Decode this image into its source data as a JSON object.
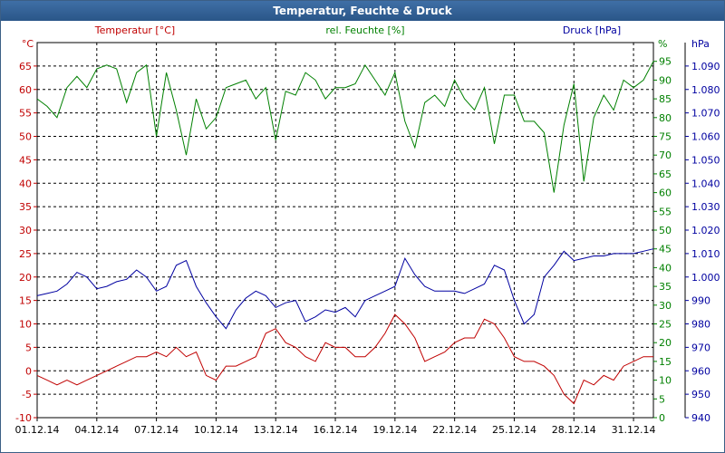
{
  "window": {
    "title": "Temperatur, Feuchte & Druck"
  },
  "chart_data": {
    "type": "line",
    "title": "Temperatur, Feuchte & Druck",
    "x_tick_labels": [
      "01.12.14",
      "04.12.14",
      "07.12.14",
      "10.12.14",
      "13.12.14",
      "16.12.14",
      "19.12.14",
      "22.12.14",
      "25.12.14",
      "28.12.14",
      "31.12.14"
    ],
    "xlim": [
      1,
      32
    ],
    "grid": true,
    "axes": {
      "temperature": {
        "label": "Temperatur [°C]",
        "unit": "°C",
        "side": "left",
        "color": "#c00000",
        "ylim": [
          -10,
          70
        ],
        "ticks": [
          "65",
          "60",
          "55",
          "50",
          "45",
          "40",
          "35",
          "30",
          "25",
          "20",
          "15",
          "10",
          "5",
          "0",
          "-5",
          "-10"
        ]
      },
      "humidity": {
        "label": "rel. Feuchte [%]",
        "unit": "%",
        "side": "right",
        "color": "#008000",
        "ylim": [
          0,
          100
        ],
        "ticks": [
          "95",
          "90",
          "85",
          "80",
          "75",
          "70",
          "65",
          "60",
          "55",
          "50",
          "45",
          "40",
          "35",
          "30",
          "25",
          "20",
          "15",
          "10",
          "5",
          "0"
        ]
      },
      "pressure": {
        "label": "Druck [hPa]",
        "unit": "hPa",
        "side": "right",
        "color": "#0000a0",
        "ylim": [
          940,
          1100
        ],
        "ticks": [
          "1.090",
          "1.080",
          "1.070",
          "1.060",
          "1.050",
          "1.040",
          "1.030",
          "1.020",
          "1.010",
          "1.000",
          "990",
          "980",
          "970",
          "960",
          "950",
          "940"
        ]
      }
    },
    "series": [
      {
        "name": "Temperatur [°C]",
        "axis": "temperature",
        "color": "#c00000",
        "x": [
          1,
          1.5,
          2,
          2.5,
          3,
          3.5,
          4,
          4.5,
          5,
          5.5,
          6,
          6.5,
          7,
          7.5,
          8,
          8.5,
          9,
          9.5,
          10,
          10.5,
          11,
          11.5,
          12,
          12.5,
          13,
          13.5,
          14,
          14.5,
          15,
          15.5,
          16,
          16.5,
          17,
          17.5,
          18,
          18.5,
          19,
          19.5,
          20,
          20.5,
          21,
          21.5,
          22,
          22.5,
          23,
          23.5,
          24,
          24.5,
          25,
          25.5,
          26,
          26.5,
          27,
          27.5,
          28,
          28.5,
          29,
          29.5,
          30,
          30.5,
          31,
          31.5,
          32
        ],
        "y": [
          -1,
          -2,
          -3,
          -2,
          -3,
          -2,
          -1,
          0,
          1,
          2,
          3,
          3,
          4,
          3,
          5,
          3,
          4,
          -1,
          -2,
          1,
          1,
          2,
          3,
          8,
          9,
          6,
          5,
          3,
          2,
          6,
          5,
          5,
          3,
          3,
          5,
          8,
          12,
          10,
          7,
          2,
          3,
          4,
          6,
          7,
          7,
          11,
          10,
          7,
          3,
          2,
          2,
          1,
          -1,
          -5,
          -7,
          -2,
          -3,
          -1,
          -2,
          1,
          2,
          3,
          3
        ]
      },
      {
        "name": "rel. Feuchte [%]",
        "axis": "humidity",
        "color": "#008000",
        "x": [
          1,
          1.5,
          2,
          2.5,
          3,
          3.5,
          4,
          4.5,
          5,
          5.5,
          6,
          6.5,
          7,
          7.5,
          8,
          8.5,
          9,
          9.5,
          10,
          10.5,
          11,
          11.5,
          12,
          12.5,
          13,
          13.5,
          14,
          14.5,
          15,
          15.5,
          16,
          16.5,
          17,
          17.5,
          18,
          18.5,
          19,
          19.5,
          20,
          20.5,
          21,
          21.5,
          22,
          22.5,
          23,
          23.5,
          24,
          24.5,
          25,
          25.5,
          26,
          26.5,
          27,
          27.5,
          28,
          28.5,
          29,
          29.5,
          30,
          30.5,
          31,
          31.5,
          32
        ],
        "y": [
          85,
          83,
          80,
          88,
          91,
          88,
          93,
          94,
          93,
          84,
          92,
          94,
          75,
          92,
          82,
          70,
          85,
          77,
          80,
          88,
          89,
          90,
          85,
          88,
          74,
          87,
          86,
          92,
          90,
          85,
          88,
          88,
          89,
          94,
          90,
          86,
          92,
          79,
          72,
          84,
          86,
          83,
          90,
          85,
          82,
          88,
          73,
          86,
          86,
          79,
          79,
          76,
          60,
          78,
          89,
          63,
          80,
          86,
          82,
          90,
          88,
          90,
          95
        ]
      },
      {
        "name": "Druck [hPa]",
        "axis": "pressure",
        "color": "#0000a0",
        "x": [
          1,
          1.5,
          2,
          2.5,
          3,
          3.5,
          4,
          4.5,
          5,
          5.5,
          6,
          6.5,
          7,
          7.5,
          8,
          8.5,
          9,
          9.5,
          10,
          10.5,
          11,
          11.5,
          12,
          12.5,
          13,
          13.5,
          14,
          14.5,
          15,
          15.5,
          16,
          16.5,
          17,
          17.5,
          18,
          18.5,
          19,
          19.5,
          20,
          20.5,
          21,
          21.5,
          22,
          22.5,
          23,
          23.5,
          24,
          24.5,
          25,
          25.5,
          26,
          26.5,
          27,
          27.5,
          28,
          28.5,
          29,
          29.5,
          30,
          30.5,
          31,
          31.5,
          32
        ],
        "y": [
          992,
          993,
          994,
          997,
          1002,
          1000,
          995,
          996,
          998,
          999,
          1003,
          1000,
          994,
          996,
          1005,
          1007,
          996,
          989,
          983,
          978,
          986,
          991,
          994,
          992,
          987,
          989,
          990,
          981,
          983,
          986,
          985,
          987,
          983,
          990,
          992,
          994,
          996,
          1008,
          1001,
          996,
          994,
          994,
          994,
          993,
          995,
          997,
          1005,
          1003,
          990,
          980,
          984,
          1000,
          1005,
          1011,
          1007,
          1008,
          1009,
          1009,
          1010,
          1010,
          1010,
          1011,
          1012
        ]
      }
    ]
  }
}
